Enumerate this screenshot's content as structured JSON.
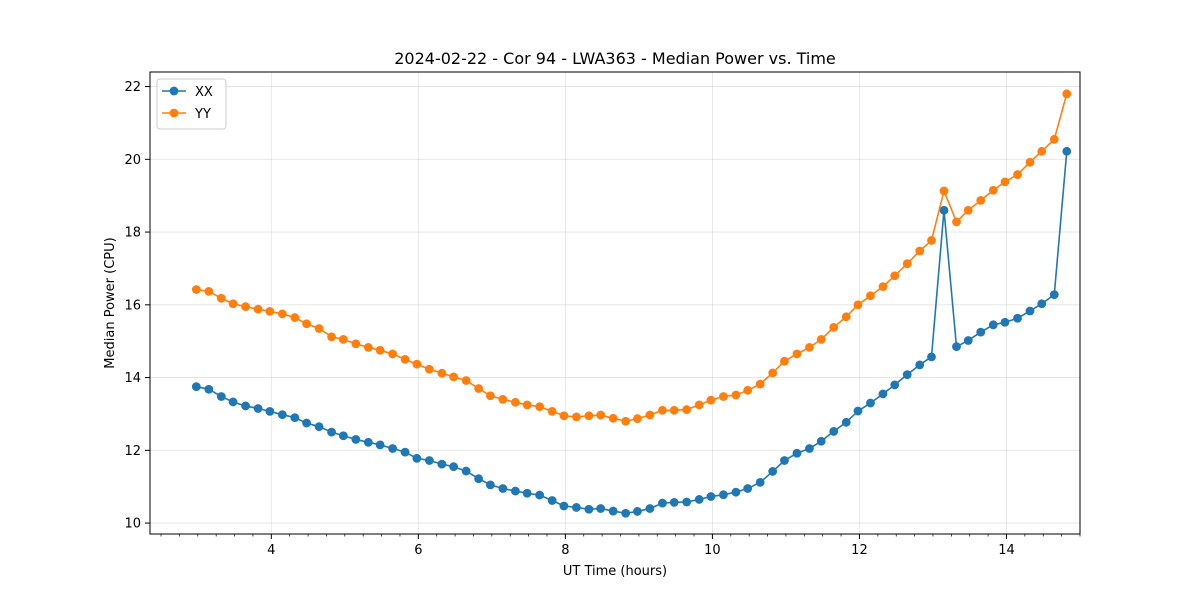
{
  "chart_data": {
    "type": "line",
    "title": "2024-02-22 - Cor 94 - LWA363 - Median Power vs. Time",
    "xlabel": "UT Time (hours)",
    "ylabel": "Median Power (CPU)",
    "xlim": [
      2.35,
      15.0
    ],
    "ylim": [
      9.7,
      22.4
    ],
    "xticks": [
      4,
      6,
      8,
      10,
      12,
      14
    ],
    "xtick_labels": [
      "4",
      "6",
      "8",
      "10",
      "12",
      "14"
    ],
    "yticks": [
      10,
      12,
      14,
      16,
      18,
      20,
      22
    ],
    "ytick_labels": [
      "10",
      "12",
      "14",
      "16",
      "18",
      "20",
      "22"
    ],
    "grid": true,
    "legend_position": "top-left",
    "series": [
      {
        "name": "XX",
        "color": "#1f77b4",
        "x": [
          2.98,
          3.15,
          3.32,
          3.48,
          3.65,
          3.82,
          3.98,
          4.15,
          4.32,
          4.48,
          4.65,
          4.82,
          4.98,
          5.15,
          5.32,
          5.48,
          5.65,
          5.82,
          5.98,
          6.15,
          6.32,
          6.48,
          6.65,
          6.82,
          6.98,
          7.15,
          7.32,
          7.48,
          7.65,
          7.82,
          7.98,
          8.15,
          8.32,
          8.48,
          8.65,
          8.82,
          8.98,
          9.15,
          9.32,
          9.48,
          9.65,
          9.82,
          9.98,
          10.15,
          10.32,
          10.48,
          10.65,
          10.82,
          10.98,
          11.15,
          11.32,
          11.48,
          11.65,
          11.82,
          11.98,
          12.15,
          12.32,
          12.48,
          12.65,
          12.82,
          12.98,
          13.15,
          13.32,
          13.48,
          13.65,
          13.82,
          13.98,
          14.15,
          14.32,
          14.48,
          14.65,
          14.82
        ],
        "values": [
          13.75,
          13.68,
          13.48,
          13.33,
          13.22,
          13.15,
          13.07,
          12.98,
          12.9,
          12.75,
          12.65,
          12.5,
          12.4,
          12.3,
          12.22,
          12.15,
          12.05,
          11.95,
          11.78,
          11.72,
          11.62,
          11.55,
          11.43,
          11.22,
          11.05,
          10.95,
          10.88,
          10.82,
          10.77,
          10.62,
          10.47,
          10.43,
          10.38,
          10.4,
          10.33,
          10.27,
          10.32,
          10.4,
          10.55,
          10.57,
          10.58,
          10.65,
          10.73,
          10.78,
          10.85,
          10.95,
          11.12,
          11.42,
          11.72,
          11.92,
          12.05,
          12.25,
          12.52,
          12.77,
          13.08,
          13.3,
          13.55,
          13.8,
          14.08,
          14.35,
          14.57,
          18.6,
          14.85,
          15.02,
          15.25,
          15.45,
          15.52,
          15.63,
          15.83,
          16.03,
          16.28,
          20.22
        ]
      },
      {
        "name": "YY",
        "color": "#ff7f0e",
        "x": [
          2.98,
          3.15,
          3.32,
          3.48,
          3.65,
          3.82,
          3.98,
          4.15,
          4.32,
          4.48,
          4.65,
          4.82,
          4.98,
          5.15,
          5.32,
          5.48,
          5.65,
          5.82,
          5.98,
          6.15,
          6.32,
          6.48,
          6.65,
          6.82,
          6.98,
          7.15,
          7.32,
          7.48,
          7.65,
          7.82,
          7.98,
          8.15,
          8.32,
          8.48,
          8.65,
          8.82,
          8.98,
          9.15,
          9.32,
          9.48,
          9.65,
          9.82,
          9.98,
          10.15,
          10.32,
          10.48,
          10.65,
          10.82,
          10.98,
          11.15,
          11.32,
          11.48,
          11.65,
          11.82,
          11.98,
          12.15,
          12.32,
          12.48,
          12.65,
          12.82,
          12.98,
          13.15,
          13.32,
          13.48,
          13.65,
          13.82,
          13.98,
          14.15,
          14.32,
          14.48,
          14.65,
          14.82
        ],
        "values": [
          16.42,
          16.37,
          16.18,
          16.03,
          15.95,
          15.88,
          15.82,
          15.75,
          15.65,
          15.48,
          15.35,
          15.12,
          15.05,
          14.93,
          14.83,
          14.75,
          14.65,
          14.5,
          14.37,
          14.23,
          14.12,
          14.02,
          13.92,
          13.7,
          13.5,
          13.4,
          13.32,
          13.25,
          13.2,
          13.07,
          12.95,
          12.92,
          12.95,
          12.97,
          12.88,
          12.8,
          12.87,
          12.97,
          13.1,
          13.1,
          13.12,
          13.25,
          13.38,
          13.48,
          13.52,
          13.65,
          13.82,
          14.13,
          14.45,
          14.65,
          14.83,
          15.05,
          15.38,
          15.67,
          16.0,
          16.25,
          16.5,
          16.8,
          17.13,
          17.48,
          17.77,
          19.13,
          18.28,
          18.6,
          18.87,
          19.15,
          19.38,
          19.58,
          19.92,
          20.22,
          20.55,
          21.8
        ]
      }
    ]
  }
}
